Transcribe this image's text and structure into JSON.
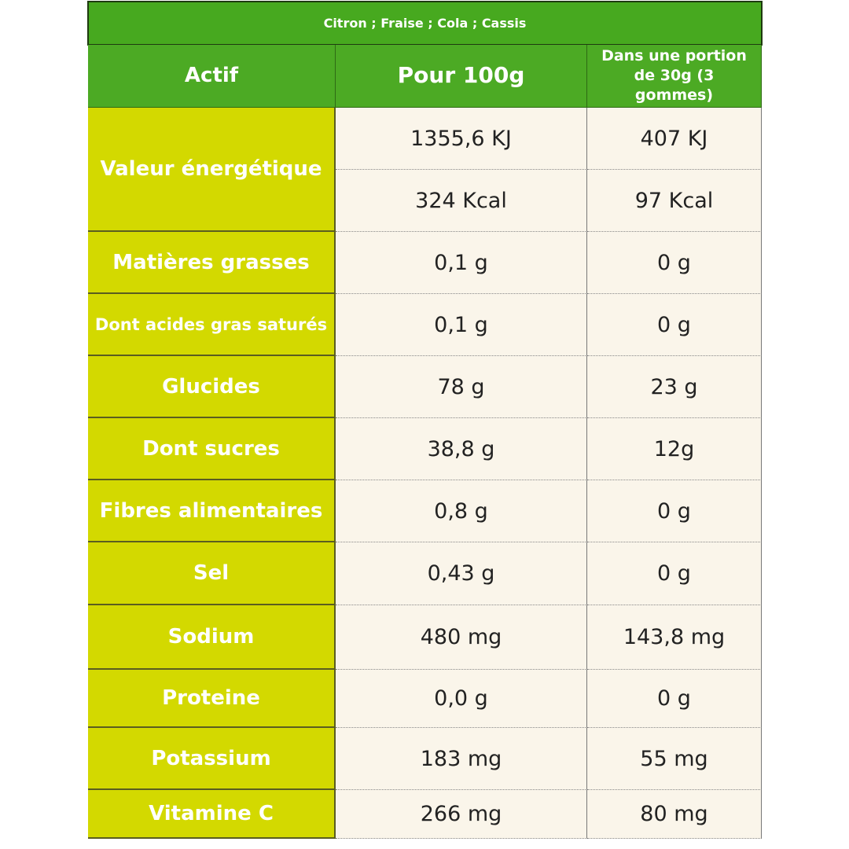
{
  "table": {
    "title": "Citron ; Fraise ; Cola ; Cassis",
    "header": [
      "Actif",
      "Pour 100g",
      "Dans une portion de 30g (3 gommes)"
    ],
    "rows": [
      {
        "label": "Valeur énergétique",
        "cells": [
          [
            "1355,6 KJ",
            "407 KJ"
          ],
          [
            "324 Kcal",
            "97 Kcal"
          ]
        ]
      },
      {
        "label": "Matières grasses",
        "cells": [
          [
            "0,1 g",
            "0 g"
          ]
        ]
      },
      {
        "label": "Dont acides gras saturés",
        "cells": [
          [
            "0,1 g",
            "0 g"
          ]
        ]
      },
      {
        "label": "Glucides",
        "cells": [
          [
            "78 g",
            "23 g"
          ]
        ]
      },
      {
        "label": "Dont sucres",
        "cells": [
          [
            "38,8 g",
            "12g"
          ]
        ]
      },
      {
        "label": "Fibres alimentaires",
        "cells": [
          [
            "0,8 g",
            "0 g"
          ]
        ]
      },
      {
        "label": "Sel",
        "cells": [
          [
            "0,43 g",
            "0 g"
          ]
        ]
      },
      {
        "label": "Sodium",
        "cells": [
          [
            "480 mg",
            "143,8 mg"
          ]
        ]
      },
      {
        "label": "Proteine",
        "cells": [
          [
            "0,0 g",
            "0 g"
          ]
        ]
      },
      {
        "label": "Potassium",
        "cells": [
          [
            "183 mg",
            "55 mg"
          ]
        ]
      },
      {
        "label": "Vitamine C",
        "cells": [
          [
            "266 mg",
            "80 mg"
          ]
        ]
      }
    ]
  }
}
